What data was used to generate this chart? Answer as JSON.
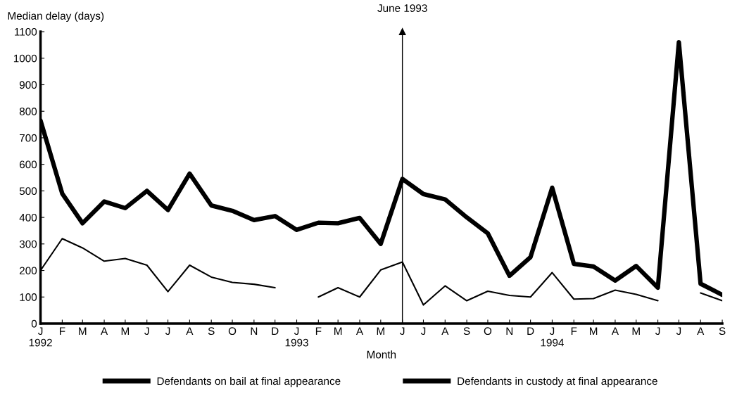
{
  "chart_data": {
    "type": "line",
    "xlabel": "Month",
    "ylabel": "Median delay (days)",
    "x": [
      "1992-01",
      "1992-02",
      "1992-03",
      "1992-04",
      "1992-05",
      "1992-06",
      "1992-07",
      "1992-08",
      "1992-09",
      "1992-10",
      "1992-11",
      "1992-12",
      "1993-01",
      "1993-02",
      "1993-03",
      "1993-04",
      "1993-05",
      "1993-06",
      "1993-07",
      "1993-08",
      "1993-09",
      "1993-10",
      "1993-11",
      "1993-12",
      "1994-01",
      "1994-02",
      "1994-03",
      "1994-04",
      "1994-05",
      "1994-06",
      "1994-07",
      "1994-08",
      "1994-09"
    ],
    "series": [
      {
        "name": "Defendants on bail at final appearance",
        "color": "#000000",
        "values": [
          765,
          490,
          378,
          460,
          435,
          500,
          428,
          565,
          445,
          425,
          390,
          405,
          353,
          380,
          378,
          398,
          300,
          545,
          488,
          468,
          400,
          340,
          180,
          250,
          512,
          225,
          215,
          162,
          217,
          135,
          1060,
          150,
          108
        ]
      },
      {
        "name": "Defendants in custody at final appearance",
        "color": "#000000",
        "values": [
          200,
          320,
          285,
          235,
          245,
          220,
          120,
          220,
          175,
          155,
          148,
          135,
          null,
          100,
          135,
          100,
          202,
          232,
          70,
          142,
          86,
          122,
          106,
          100,
          192,
          92,
          94,
          126,
          110,
          86,
          null,
          115,
          86
        ]
      }
    ],
    "xlim": [
      "1992-01",
      "1994-09"
    ],
    "xticks": [
      {
        "value": "1992-01",
        "label": "J\n1992"
      },
      {
        "value": "1992-02",
        "label": "F"
      },
      {
        "value": "1992-03",
        "label": "M"
      },
      {
        "value": "1992-04",
        "label": "A"
      },
      {
        "value": "1992-05",
        "label": "M"
      },
      {
        "value": "1992-06",
        "label": "J"
      },
      {
        "value": "1992-07",
        "label": "J"
      },
      {
        "value": "1992-08",
        "label": "A"
      },
      {
        "value": "1992-09",
        "label": "S"
      },
      {
        "value": "1992-10",
        "label": "O"
      },
      {
        "value": "1992-11",
        "label": "N"
      },
      {
        "value": "1992-12",
        "label": "D"
      },
      {
        "value": "1993-01",
        "label": "J\n1993"
      },
      {
        "value": "1993-02",
        "label": "F"
      },
      {
        "value": "1993-03",
        "label": "M"
      },
      {
        "value": "1993-04",
        "label": "A"
      },
      {
        "value": "1993-05",
        "label": "M"
      },
      {
        "value": "1993-06",
        "label": "J"
      },
      {
        "value": "1993-07",
        "label": "J"
      },
      {
        "value": "1993-08",
        "label": "A"
      },
      {
        "value": "1993-09",
        "label": "S"
      },
      {
        "value": "1993-10",
        "label": "O"
      },
      {
        "value": "1993-11",
        "label": "N"
      },
      {
        "value": "1993-12",
        "label": "D"
      },
      {
        "value": "1994-01",
        "label": "J\n1994"
      },
      {
        "value": "1994-02",
        "label": "F"
      },
      {
        "value": "1994-03",
        "label": "M"
      },
      {
        "value": "1994-04",
        "label": "A"
      },
      {
        "value": "1994-05",
        "label": "M"
      },
      {
        "value": "1994-06",
        "label": "J"
      },
      {
        "value": "1994-07",
        "label": "J"
      },
      {
        "value": "1994-08",
        "label": "A"
      },
      {
        "value": "1994-09",
        "label": "S"
      }
    ],
    "ylim": [
      0,
      1100
    ],
    "yticks": [
      0,
      100,
      200,
      300,
      400,
      500,
      600,
      700,
      800,
      900,
      1000,
      1100
    ],
    "ref_lines": [
      {
        "axis": "x",
        "value": "1993-06",
        "label": "June 1993",
        "color": "#000000"
      }
    ],
    "grid": false,
    "legend": "bottom",
    "marker": "none",
    "line_style": "solid"
  }
}
